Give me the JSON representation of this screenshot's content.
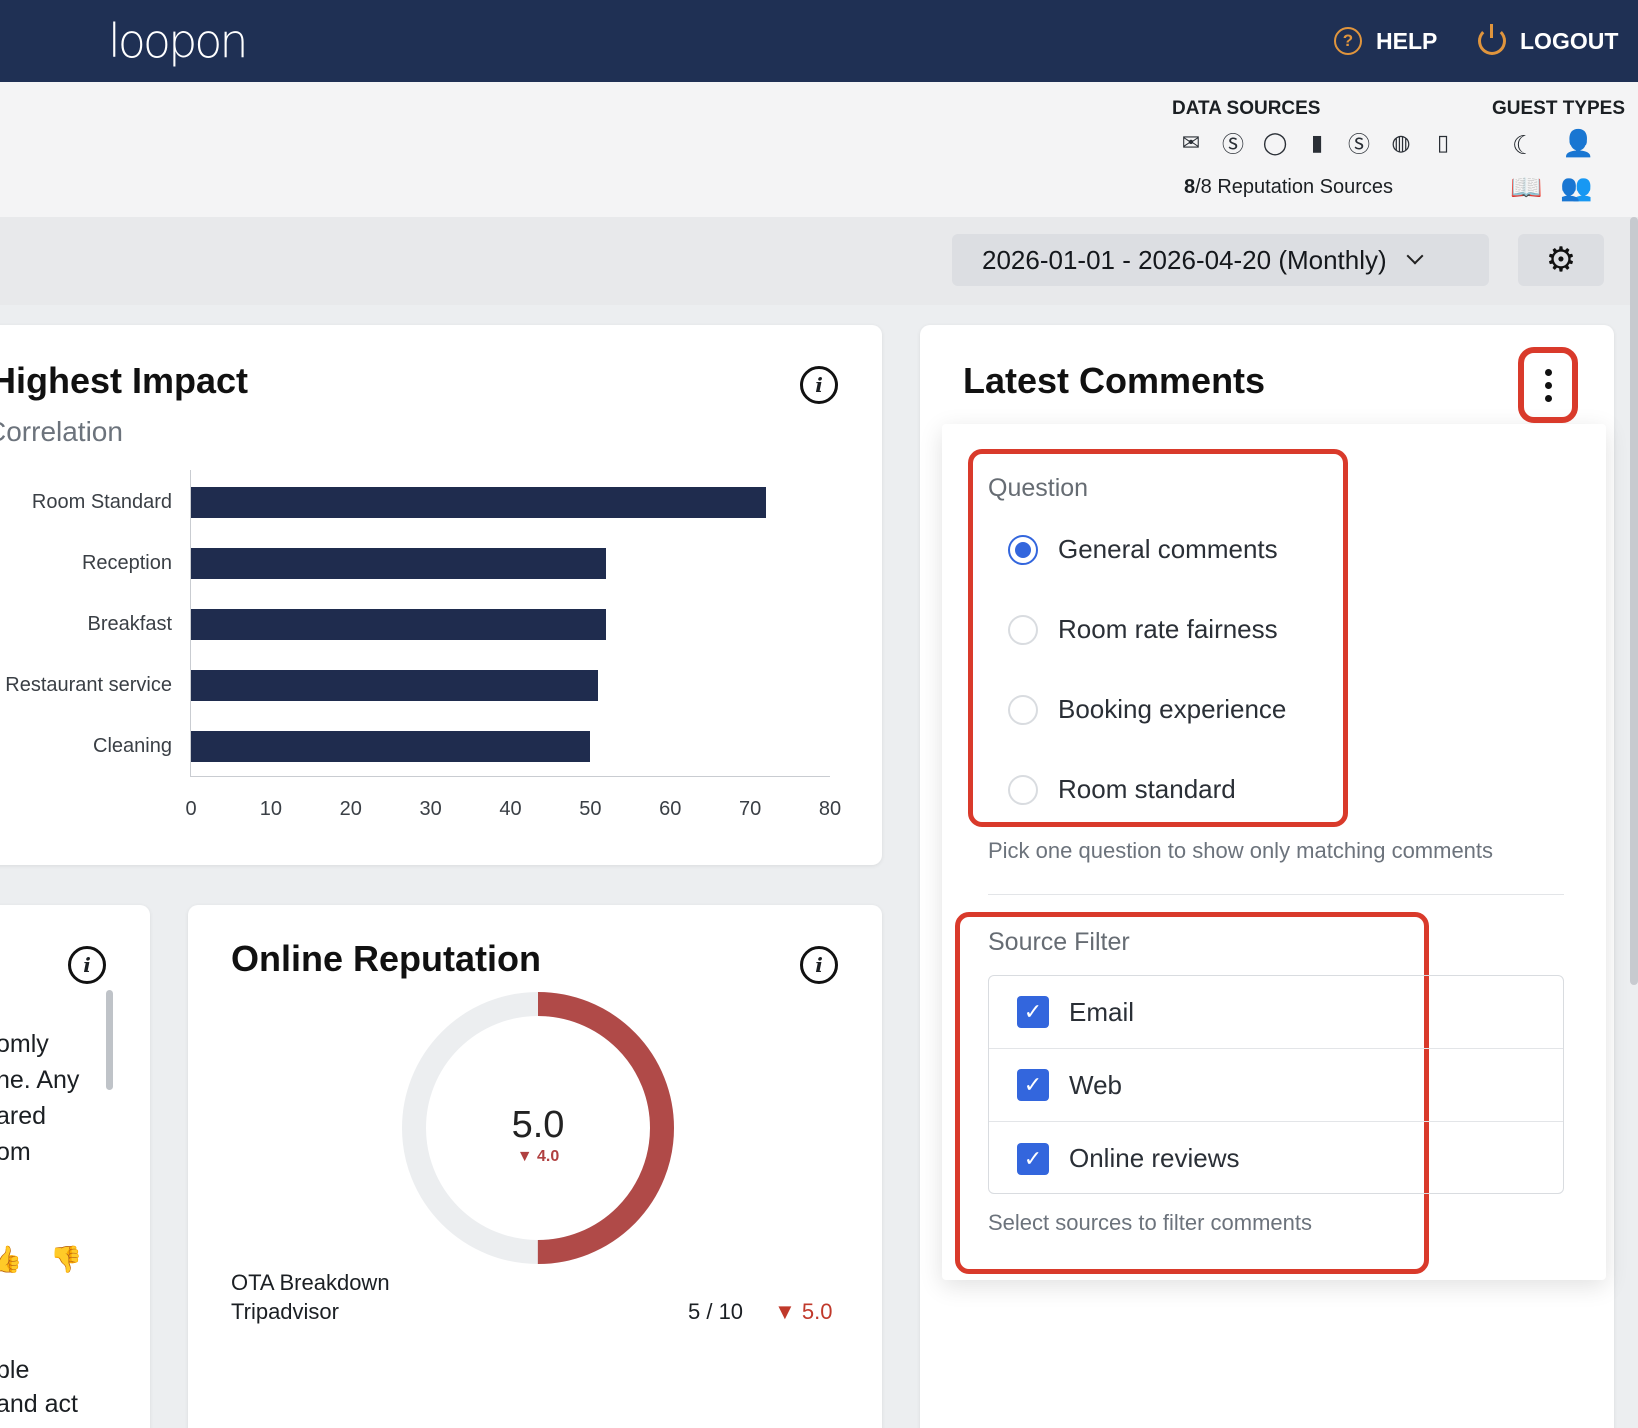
{
  "brand": {
    "logo_text": "loopon"
  },
  "topnav": {
    "help": "HELP",
    "logout": "LOGOUT"
  },
  "sources": {
    "data_sources_title": "DATA SOURCES",
    "guest_types_title": "GUEST TYPES",
    "icons": [
      "envelope-icon",
      "dollar-icon",
      "chat-bubble-icon",
      "flag-icon",
      "dollar-icon",
      "globe-icon",
      "document-icon"
    ],
    "count_bold": "8",
    "count_rest": "/8 Reputation Sources",
    "guest_icons": [
      "moon-icon",
      "person-icon",
      "book-icon",
      "group-icon"
    ]
  },
  "datebar": {
    "range": "2026-01-01 - 2026-04-20 (Monthly)"
  },
  "impact": {
    "title": "Highest Impact",
    "subtitle": "Correlation"
  },
  "chart_data": {
    "type": "bar",
    "orientation": "horizontal",
    "title": "Highest Impact",
    "subtitle": "Correlation",
    "categories": [
      "Room Standard",
      "Reception",
      "Breakfast",
      "Restaurant service",
      "Cleaning"
    ],
    "values": [
      72,
      52,
      52,
      51,
      50
    ],
    "xlim": [
      0,
      80
    ],
    "xticks": [
      "0",
      "10",
      "20",
      "30",
      "40",
      "50",
      "60",
      "70",
      "80"
    ],
    "bar_color": "#1f2c4e"
  },
  "left_card": {
    "fragments": [
      "omly",
      "ne. Any",
      "ared",
      "om",
      "ble",
      "and act"
    ]
  },
  "reputation": {
    "title": "Online Reputation",
    "score": "5.0",
    "delta": "▼ 4.0",
    "ota_title": "OTA Breakdown",
    "ota_source": "Tripadvisor",
    "ota_score": "5 / 10",
    "ota_delta": "▼ 5.0",
    "gauge_fraction": 0.5,
    "gauge_color": "#b04a48"
  },
  "comments": {
    "title": "Latest Comments",
    "question_label": "Question",
    "questions": [
      {
        "label": "General comments",
        "selected": true
      },
      {
        "label": "Room rate fairness",
        "selected": false
      },
      {
        "label": "Booking experience",
        "selected": false
      },
      {
        "label": "Room standard",
        "selected": false
      }
    ],
    "question_hint": "Pick one question to show only matching comments",
    "source_label": "Source Filter",
    "source_options": [
      {
        "label": "Email",
        "checked": true
      },
      {
        "label": "Web",
        "checked": true
      },
      {
        "label": "Online reviews",
        "checked": true
      }
    ],
    "source_hint": "Select sources to filter comments"
  },
  "colors": {
    "navy": "#1f3054",
    "accent": "#e0953d",
    "highlight": "#d93a2b",
    "checkbox": "#3366dd"
  }
}
